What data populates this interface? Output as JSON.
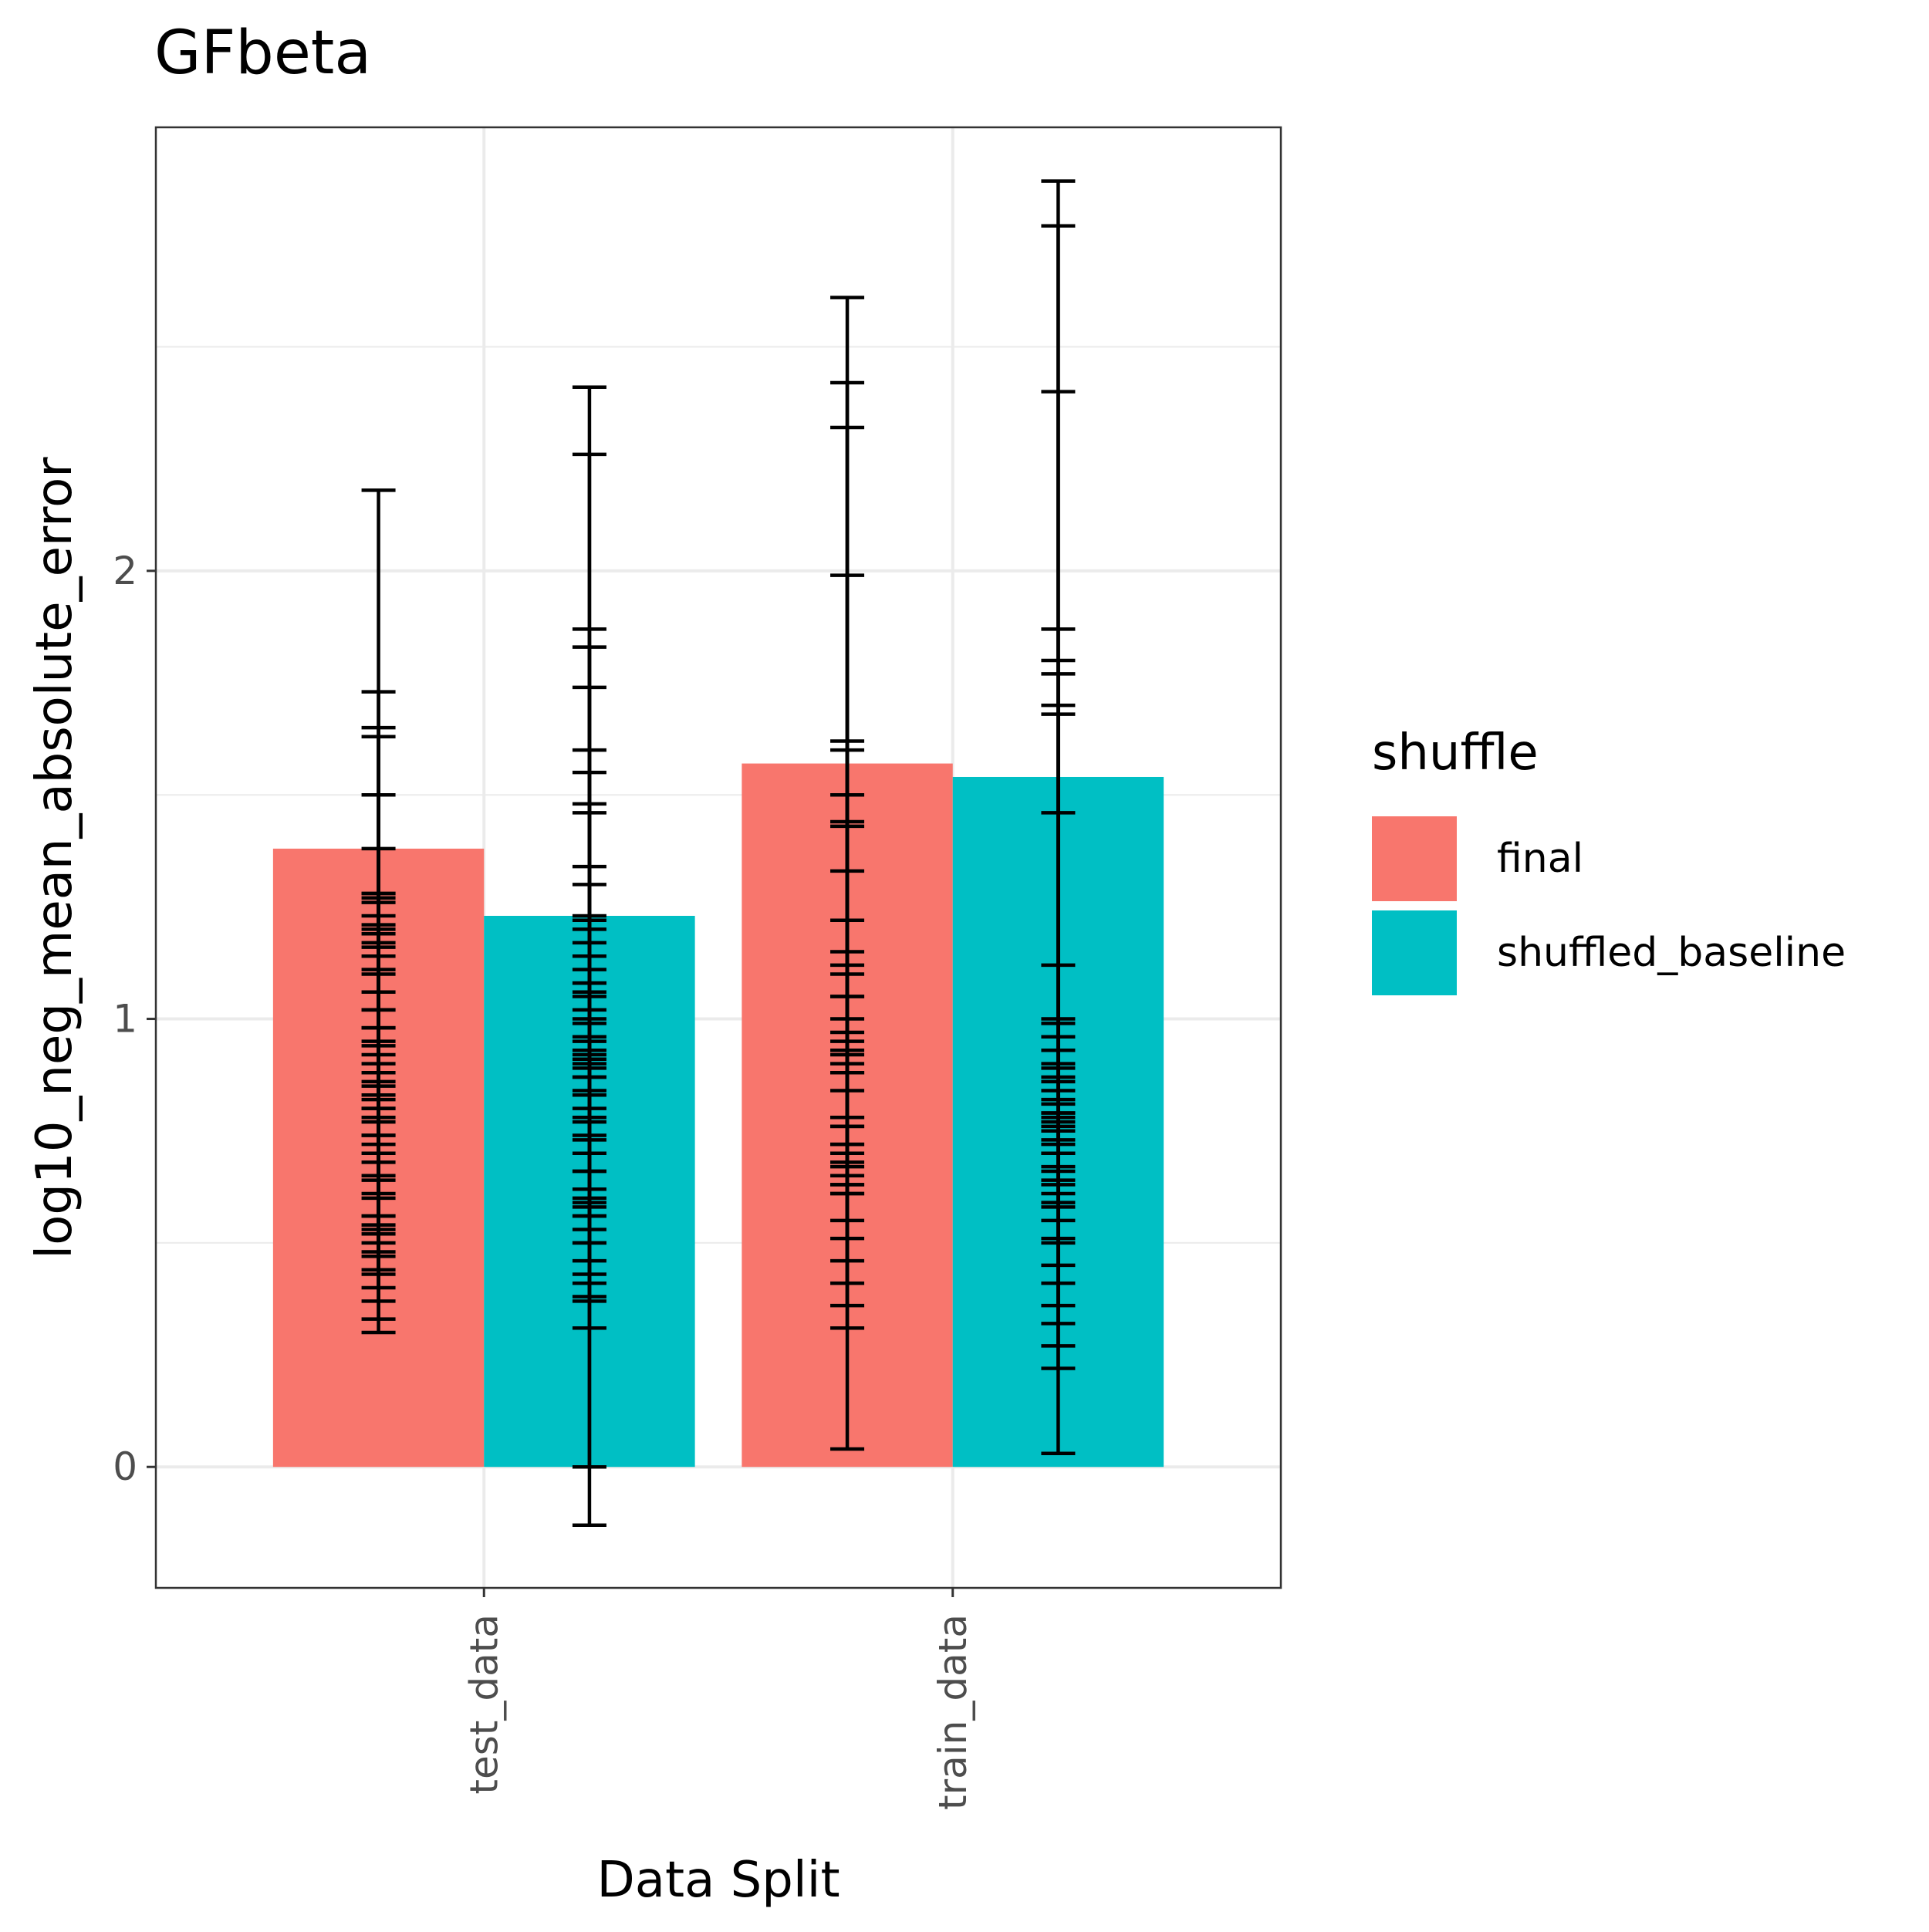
{
  "chart_data": {
    "type": "bar",
    "title": "GFbeta",
    "xlabel": "Data Split",
    "ylabel": "log10_neg_mean_absolute_error",
    "categories": [
      "test_data",
      "train_data"
    ],
    "ylim": [
      -0.27,
      2.99
    ],
    "yticks": [
      0,
      1,
      2
    ],
    "grid": true,
    "legend": {
      "title": "shuffle",
      "position": "right",
      "entries": [
        "final",
        "shuffled_baseline"
      ]
    },
    "series": [
      {
        "name": "final",
        "color": "#F8766D",
        "values": [
          1.38,
          1.57
        ],
        "error_bars": [
          [
            [
              0.3,
              2.18
            ],
            [
              0.33,
              1.73
            ],
            [
              0.37,
              1.65
            ],
            [
              0.4,
              1.63
            ],
            [
              0.44,
              1.5
            ],
            [
              0.48,
              1.38
            ],
            [
              0.53,
              1.28
            ],
            [
              0.56,
              1.27
            ],
            [
              0.61,
              1.21
            ],
            [
              0.65,
              1.19
            ],
            [
              0.7,
              1.16
            ],
            [
              0.74,
              1.11
            ],
            [
              0.77,
              1.02
            ],
            [
              0.8,
              0.98
            ],
            [
              0.83,
              0.94
            ],
            [
              0.86,
              0.85
            ],
            [
              0.88,
              0.82
            ],
            [
              0.9,
              0.8
            ],
            [
              0.92,
              0.78
            ],
            [
              0.95,
              0.74
            ],
            [
              0.98,
              0.72
            ],
            [
              1.02,
              0.68
            ],
            [
              1.06,
              0.64
            ],
            [
              1.1,
              0.6
            ],
            [
              1.14,
              0.56
            ],
            [
              1.17,
              0.54
            ],
            [
              1.2,
              0.52
            ],
            [
              1.23,
              0.5
            ],
            [
              1.26,
              0.47
            ],
            [
              1.28,
              0.43
            ]
          ],
          [
            [
              0.04,
              2.61
            ],
            [
              0.31,
              2.42
            ],
            [
              0.36,
              2.32
            ],
            [
              0.41,
              1.99
            ],
            [
              0.46,
              1.62
            ],
            [
              0.51,
              1.6
            ],
            [
              0.55,
              1.5
            ],
            [
              0.61,
              1.44
            ],
            [
              0.63,
              1.43
            ],
            [
              0.67,
              1.33
            ],
            [
              0.7,
              1.22
            ],
            [
              0.72,
              1.12
            ],
            [
              0.76,
              1.05
            ],
            [
              0.78,
              0.97
            ],
            [
              0.84,
              0.93
            ],
            [
              0.88,
              0.88
            ],
            [
              0.9,
              0.78
            ],
            [
              0.92,
              0.76
            ],
            [
              0.95,
              0.72
            ],
            [
              1.0,
              0.68
            ],
            [
              1.05,
              0.65
            ],
            [
              1.1,
              0.63
            ],
            [
              1.15,
              0.61
            ]
          ]
        ]
      },
      {
        "name": "shuffled_baseline",
        "color": "#00BFC4",
        "values": [
          1.23,
          1.54
        ],
        "error_bars": [
          [
            [
              -0.13,
              2.41
            ],
            [
              0.0,
              2.26
            ],
            [
              0.31,
              1.87
            ],
            [
              0.37,
              1.83
            ],
            [
              0.38,
              1.74
            ],
            [
              0.41,
              1.6
            ],
            [
              0.43,
              1.55
            ],
            [
              0.5,
              1.48
            ],
            [
              0.56,
              1.46
            ],
            [
              0.58,
              1.34
            ],
            [
              0.6,
              1.3
            ],
            [
              0.66,
              1.23
            ],
            [
              0.73,
              1.08
            ],
            [
              0.77,
              1.06
            ],
            [
              0.8,
              1.0
            ],
            [
              0.84,
              0.95
            ],
            [
              0.87,
              0.92
            ],
            [
              0.89,
              0.9
            ],
            [
              0.91,
              0.87
            ],
            [
              0.93,
              0.83
            ],
            [
              0.96,
              0.78
            ],
            [
              0.99,
              0.74
            ],
            [
              1.02,
              0.7
            ],
            [
              1.05,
              0.66
            ],
            [
              1.08,
              0.62
            ],
            [
              1.11,
              0.59
            ],
            [
              1.14,
              0.56
            ],
            [
              1.17,
              0.53
            ],
            [
              1.2,
              0.5
            ],
            [
              1.22,
              0.46
            ]
          ],
          [
            [
              0.03,
              2.87
            ],
            [
              0.22,
              2.77
            ],
            [
              0.27,
              2.4
            ],
            [
              0.32,
              1.87
            ],
            [
              0.36,
              1.8
            ],
            [
              0.41,
              1.77
            ],
            [
              0.45,
              1.7
            ],
            [
              0.5,
              1.68
            ],
            [
              0.51,
              1.46
            ],
            [
              0.58,
              1.12
            ],
            [
              0.61,
              1.0
            ],
            [
              0.64,
              0.99
            ],
            [
              0.67,
              0.89
            ],
            [
              0.7,
              0.86
            ],
            [
              0.72,
              0.82
            ],
            [
              0.75,
              0.79
            ],
            [
              0.77,
              0.78
            ],
            [
              0.79,
              0.76
            ],
            [
              0.81,
              0.73
            ],
            [
              0.84,
              0.7
            ],
            [
              0.87,
              0.66
            ],
            [
              0.9,
              0.63
            ],
            [
              0.93,
              0.59
            ],
            [
              0.96,
              0.55
            ]
          ]
        ]
      }
    ]
  }
}
